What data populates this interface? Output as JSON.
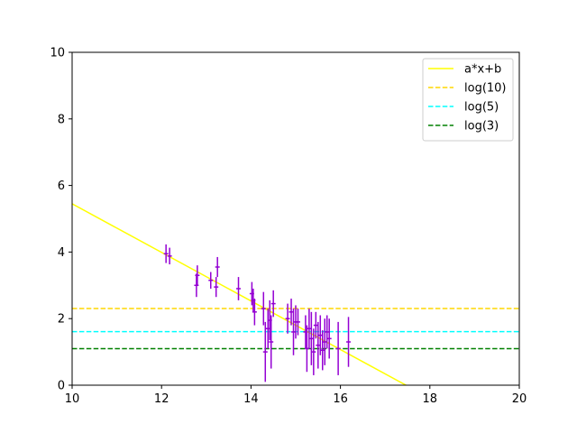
{
  "chart_data": {
    "type": "scatter",
    "xlim": [
      10,
      20
    ],
    "ylim": [
      0,
      10
    ],
    "x_ticks": [
      "10",
      "12",
      "14",
      "16",
      "18",
      "20"
    ],
    "y_ticks": [
      "0",
      "2",
      "4",
      "6",
      "8",
      "10"
    ],
    "grid": false,
    "legend_position": "top-right",
    "fit_line": {
      "name": "a*x+b",
      "color": "#ffff00",
      "slope": -0.73,
      "intercept": 12.75
    },
    "hlines": [
      {
        "name": "log(10)",
        "y": 2.303,
        "color": "#ffd700",
        "style": "dashed"
      },
      {
        "name": "log(5)",
        "y": 1.609,
        "color": "#00ffff",
        "style": "dashed"
      },
      {
        "name": "log(3)",
        "y": 1.099,
        "color": "#008000",
        "style": "dashed"
      }
    ],
    "points_color": "#9400d3",
    "points": [
      {
        "x": 12.1,
        "y": 3.95,
        "xerr": 0.05,
        "yerr": 0.28
      },
      {
        "x": 12.18,
        "y": 3.88,
        "xerr": 0.05,
        "yerr": 0.25
      },
      {
        "x": 12.78,
        "y": 3.0,
        "xerr": 0.05,
        "yerr": 0.35
      },
      {
        "x": 12.8,
        "y": 3.3,
        "xerr": 0.05,
        "yerr": 0.3
      },
      {
        "x": 13.1,
        "y": 3.15,
        "xerr": 0.05,
        "yerr": 0.25
      },
      {
        "x": 13.22,
        "y": 2.95,
        "xerr": 0.05,
        "yerr": 0.3
      },
      {
        "x": 13.25,
        "y": 3.55,
        "xerr": 0.05,
        "yerr": 0.3
      },
      {
        "x": 13.72,
        "y": 2.9,
        "xerr": 0.05,
        "yerr": 0.35
      },
      {
        "x": 14.02,
        "y": 2.75,
        "xerr": 0.05,
        "yerr": 0.35
      },
      {
        "x": 14.05,
        "y": 2.55,
        "xerr": 0.05,
        "yerr": 0.35
      },
      {
        "x": 14.08,
        "y": 2.2,
        "xerr": 0.05,
        "yerr": 0.4
      },
      {
        "x": 14.28,
        "y": 2.3,
        "xerr": 0.05,
        "yerr": 0.5
      },
      {
        "x": 14.32,
        "y": 1.0,
        "xerr": 0.05,
        "yerr": 0.9
      },
      {
        "x": 14.38,
        "y": 1.7,
        "xerr": 0.05,
        "yerr": 0.6
      },
      {
        "x": 14.42,
        "y": 1.95,
        "xerr": 0.05,
        "yerr": 0.6
      },
      {
        "x": 14.45,
        "y": 1.3,
        "xerr": 0.05,
        "yerr": 0.8
      },
      {
        "x": 14.5,
        "y": 2.45,
        "xerr": 0.05,
        "yerr": 0.4
      },
      {
        "x": 14.82,
        "y": 2.0,
        "xerr": 0.05,
        "yerr": 0.45
      },
      {
        "x": 14.9,
        "y": 2.2,
        "xerr": 0.05,
        "yerr": 0.4
      },
      {
        "x": 14.95,
        "y": 1.6,
        "xerr": 0.05,
        "yerr": 0.7
      },
      {
        "x": 15.0,
        "y": 1.9,
        "xerr": 0.05,
        "yerr": 0.5
      },
      {
        "x": 15.05,
        "y": 1.9,
        "xerr": 0.05,
        "yerr": 0.4
      },
      {
        "x": 15.22,
        "y": 1.6,
        "xerr": 0.05,
        "yerr": 0.5
      },
      {
        "x": 15.25,
        "y": 1.1,
        "xerr": 0.05,
        "yerr": 0.7
      },
      {
        "x": 15.3,
        "y": 1.7,
        "xerr": 0.05,
        "yerr": 0.6
      },
      {
        "x": 15.35,
        "y": 1.4,
        "xerr": 0.05,
        "yerr": 0.8
      },
      {
        "x": 15.4,
        "y": 1.0,
        "xerr": 0.05,
        "yerr": 0.7
      },
      {
        "x": 15.45,
        "y": 1.8,
        "xerr": 0.05,
        "yerr": 0.4
      },
      {
        "x": 15.5,
        "y": 1.2,
        "xerr": 0.05,
        "yerr": 0.7
      },
      {
        "x": 15.55,
        "y": 1.5,
        "xerr": 0.05,
        "yerr": 0.6
      },
      {
        "x": 15.6,
        "y": 1.05,
        "xerr": 0.05,
        "yerr": 0.6
      },
      {
        "x": 15.65,
        "y": 1.3,
        "xerr": 0.05,
        "yerr": 0.7
      },
      {
        "x": 15.7,
        "y": 1.6,
        "xerr": 0.05,
        "yerr": 0.5
      },
      {
        "x": 15.75,
        "y": 1.4,
        "xerr": 0.05,
        "yerr": 0.6
      },
      {
        "x": 15.95,
        "y": 1.1,
        "xerr": 0.05,
        "yerr": 0.8
      },
      {
        "x": 16.18,
        "y": 1.3,
        "xerr": 0.05,
        "yerr": 0.75
      }
    ]
  }
}
